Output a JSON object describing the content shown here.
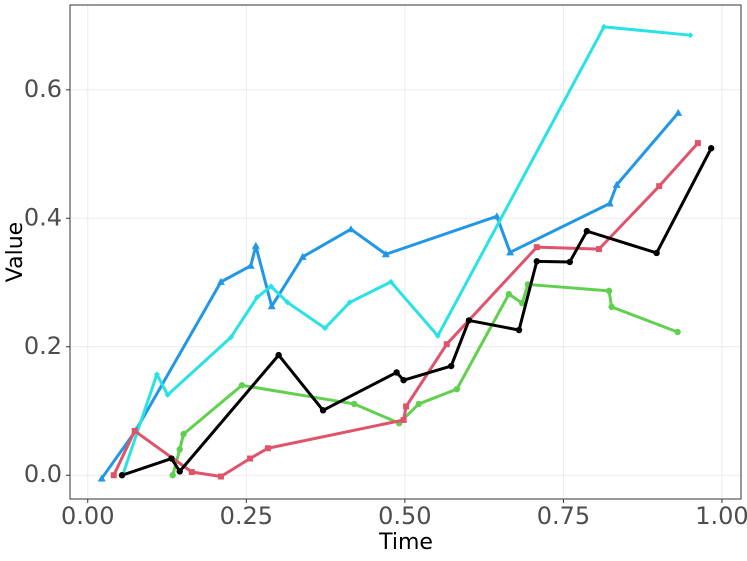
{
  "chart_data": {
    "type": "line",
    "x_label": "Time",
    "y_label": "Value",
    "series": [
      {
        "color": "#2297E6",
        "marker": "triangle",
        "x": [
          0.022,
          0.076,
          0.21,
          0.257,
          0.265,
          0.29,
          0.339,
          0.415,
          0.47,
          0.645,
          0.666,
          0.823,
          0.834,
          0.931
        ],
        "values": [
          -0.005,
          0.07,
          0.301,
          0.326,
          0.357,
          0.263,
          0.34,
          0.383,
          0.344,
          0.403,
          0.347,
          0.423,
          0.452,
          0.564
        ]
      },
      {
        "color": "#28E2E5",
        "marker": "diamond",
        "x": [
          0.055,
          0.109,
          0.126,
          0.226,
          0.267,
          0.289,
          0.315,
          0.374,
          0.413,
          0.478,
          0.552,
          0.814,
          0.95
        ],
        "values": [
          0.0,
          0.157,
          0.125,
          0.215,
          0.277,
          0.294,
          0.269,
          0.229,
          0.269,
          0.301,
          0.217,
          0.698,
          0.685
        ]
      },
      {
        "color": "#61D04F",
        "marker": "circle",
        "x": [
          0.134,
          0.145,
          0.151,
          0.243,
          0.42,
          0.491,
          0.522,
          0.582,
          0.664,
          0.685,
          0.694,
          0.822,
          0.826,
          0.93
        ],
        "values": [
          0.0,
          0.04,
          0.064,
          0.14,
          0.111,
          0.081,
          0.111,
          0.134,
          0.282,
          0.268,
          0.297,
          0.287,
          0.262,
          0.223
        ]
      },
      {
        "color": "#DF536B",
        "marker": "square",
        "x": [
          0.041,
          0.074,
          0.164,
          0.21,
          0.256,
          0.284,
          0.498,
          0.502,
          0.566,
          0.708,
          0.806,
          0.901,
          0.962
        ],
        "values": [
          0.0,
          0.069,
          0.005,
          -0.002,
          0.026,
          0.042,
          0.086,
          0.107,
          0.204,
          0.355,
          0.352,
          0.45,
          0.517
        ]
      },
      {
        "color": "#000000",
        "marker": "circle",
        "x": [
          0.054,
          0.132,
          0.145,
          0.301,
          0.371,
          0.487,
          0.498,
          0.573,
          0.601,
          0.68,
          0.708,
          0.76,
          0.787,
          0.897,
          0.983
        ],
        "values": [
          0.0,
          0.026,
          0.006,
          0.187,
          0.101,
          0.16,
          0.148,
          0.17,
          0.241,
          0.226,
          0.333,
          0.332,
          0.38,
          0.346,
          0.509
        ]
      }
    ],
    "xlim": [
      -0.028,
      1.03
    ],
    "ylim": [
      -0.037,
      0.732
    ],
    "xticks": [
      {
        "value": 0,
        "label": "0.00"
      },
      {
        "value": 0.25,
        "label": "0.25"
      },
      {
        "value": 0.5,
        "label": "0.50"
      },
      {
        "value": 0.75,
        "label": "0.75"
      },
      {
        "value": 1,
        "label": "1.00"
      }
    ],
    "yticks": [
      {
        "value": 0,
        "label": "0.0"
      },
      {
        "value": 0.2,
        "label": "0.2"
      },
      {
        "value": 0.4,
        "label": "0.4"
      },
      {
        "value": 0.6,
        "label": "0.6"
      }
    ],
    "grid": true
  }
}
